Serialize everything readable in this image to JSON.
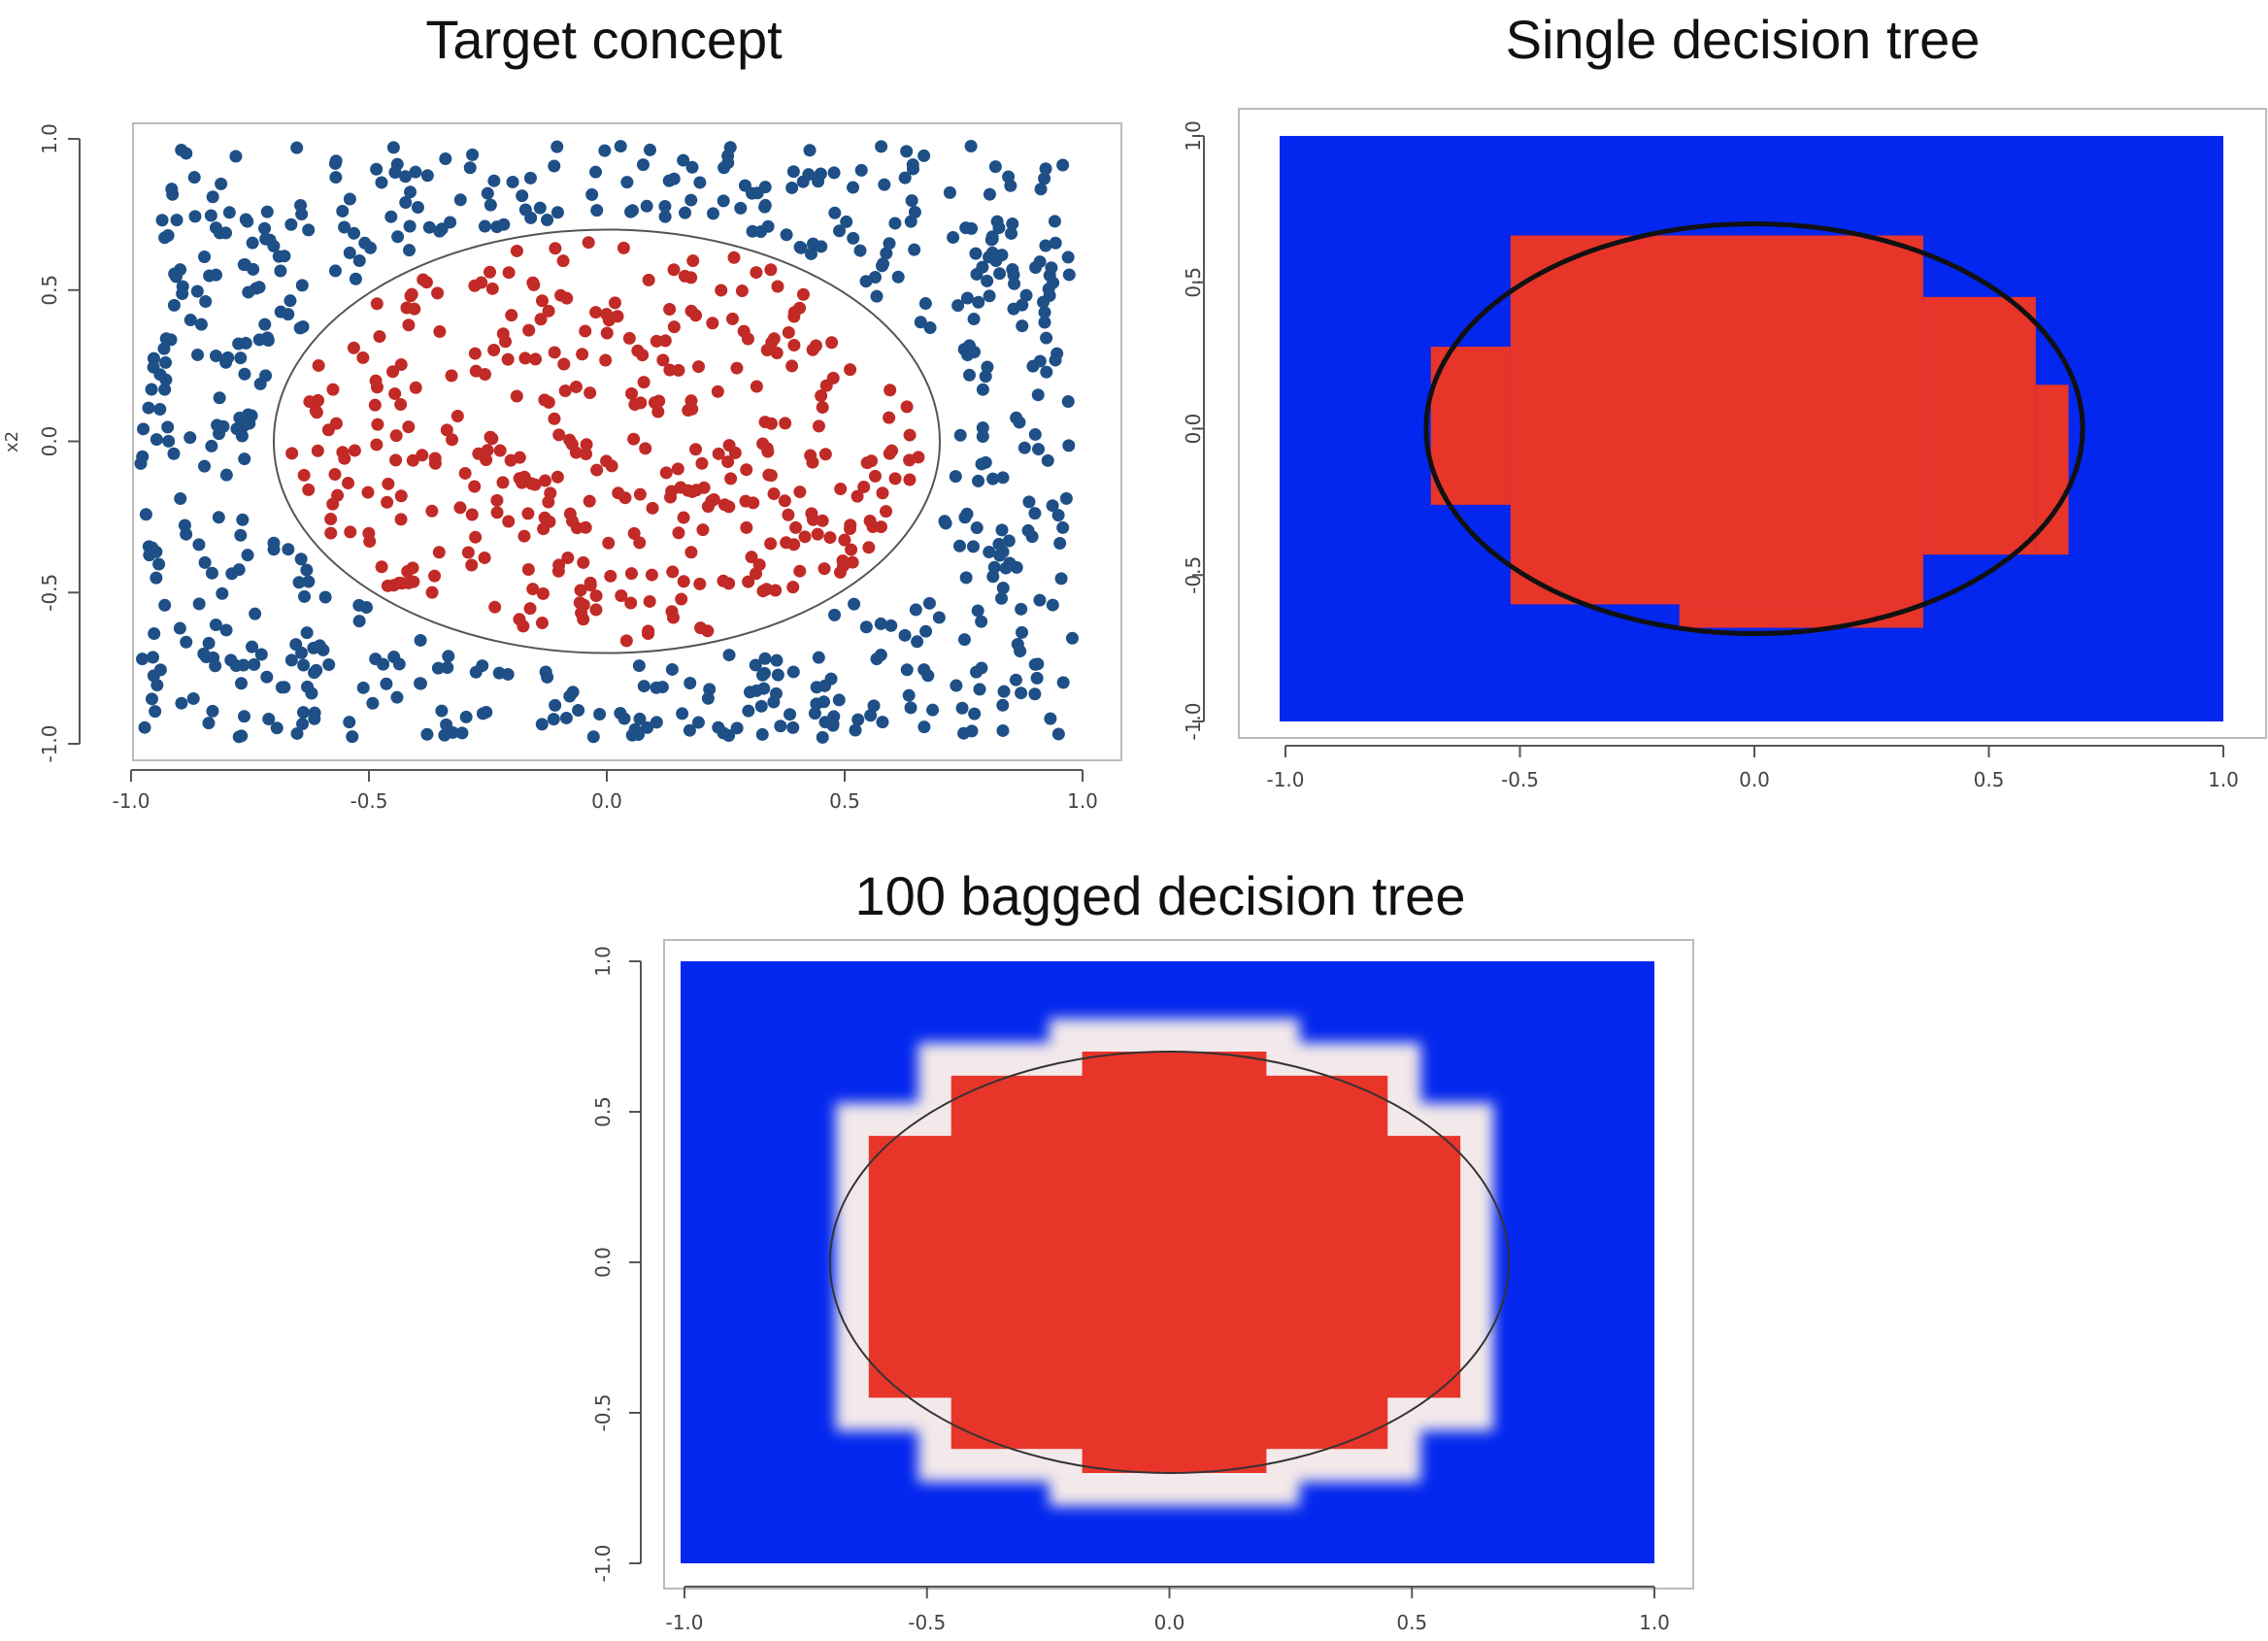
{
  "colors": {
    "class_inside": "#e8352a",
    "class_outside_points": "#1e4f86",
    "class_inside_points": "#c12a26",
    "region_outside": "#0327ee",
    "boundary": "#1a1a1a",
    "frame": "#bbbbbb"
  },
  "chart_data": [
    {
      "type": "scatter",
      "title": "Target concept",
      "xlabel": "",
      "ylabel": "x2",
      "xlim": [
        -1.0,
        1.0
      ],
      "ylim": [
        -1.0,
        1.0
      ],
      "xticks": [
        "-1.0",
        "-0.5",
        "0.0",
        "0.5",
        "1.0"
      ],
      "yticks": [
        "-1.0",
        "-0.5",
        "0.0",
        "0.5",
        "1.0"
      ],
      "boundary": {
        "shape": "ellipse",
        "cx": 0.0,
        "cy": 0.0,
        "rx": 0.7,
        "ry": 0.7
      },
      "series": [
        {
          "class": "inside",
          "color": "#c12a26",
          "n_points": 430
        },
        {
          "class": "outside",
          "color": "#1e4f86",
          "n_points": 620
        }
      ]
    },
    {
      "type": "heatmap",
      "title": "Single decision tree",
      "xlabel": "",
      "ylabel": "",
      "xlim": [
        -1.0,
        1.0
      ],
      "ylim": [
        -1.0,
        1.0
      ],
      "xticks": [
        "-1.0",
        "-0.5",
        "0.0",
        "0.5",
        "1.0"
      ],
      "yticks": [
        "-1.0",
        "-0.5",
        "0.0",
        "0.5",
        "1.0"
      ],
      "boundary": {
        "shape": "ellipse",
        "cx": 0.0,
        "cy": 0.0,
        "rx": 0.7,
        "ry": 0.7
      },
      "predicted_inside_rects": [
        {
          "x0": -0.52,
          "x1": 0.36,
          "y0": -0.6,
          "y1": 0.66
        },
        {
          "x0": -0.69,
          "x1": -0.52,
          "y0": -0.26,
          "y1": 0.28
        },
        {
          "x0": 0.36,
          "x1": 0.6,
          "y0": -0.43,
          "y1": 0.45
        },
        {
          "x0": 0.6,
          "x1": 0.67,
          "y0": -0.43,
          "y1": 0.15
        },
        {
          "x0": -0.16,
          "x1": 0.36,
          "y0": -0.68,
          "y1": -0.6
        }
      ]
    },
    {
      "type": "heatmap",
      "title": "100 bagged decision tree",
      "xlabel": "",
      "ylabel": "",
      "xlim": [
        -1.0,
        1.0
      ],
      "ylim": [
        -1.0,
        1.0
      ],
      "xticks": [
        "-1.0",
        "-0.5",
        "0.0",
        "0.5",
        "1.0"
      ],
      "yticks": [
        "-1.0",
        "-0.5",
        "0.0",
        "0.5",
        "1.0"
      ],
      "boundary": {
        "shape": "ellipse",
        "cx": 0.0,
        "cy": 0.0,
        "rx": 0.7,
        "ry": 0.7
      },
      "predicted_inside_rects": [
        {
          "x0": -0.62,
          "x1": 0.6,
          "y0": -0.45,
          "y1": 0.42
        },
        {
          "x0": -0.45,
          "x1": 0.45,
          "y0": -0.62,
          "y1": 0.62
        },
        {
          "x0": -0.18,
          "x1": 0.2,
          "y0": -0.7,
          "y1": 0.7
        }
      ]
    }
  ]
}
